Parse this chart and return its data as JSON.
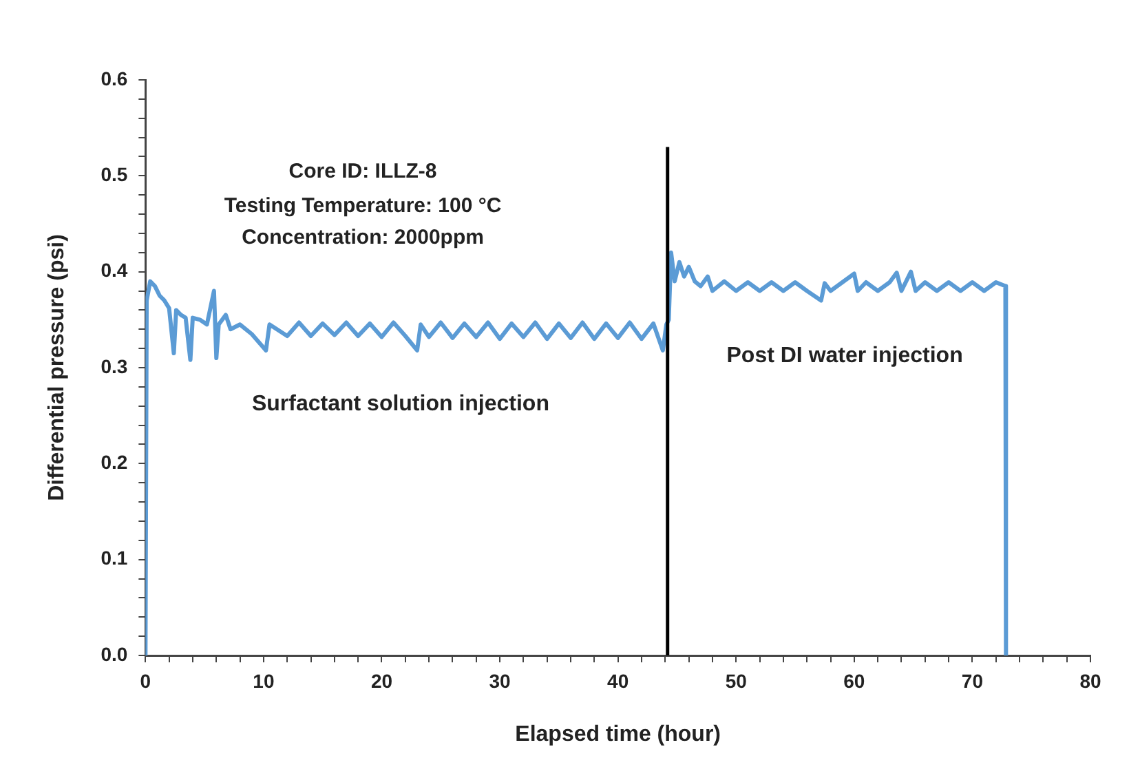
{
  "chart_data": {
    "type": "line",
    "xlabel": "Elapsed time (hour)",
    "ylabel": "Differential pressure (psi)",
    "xlim": [
      0,
      80
    ],
    "ylim": [
      0,
      0.6
    ],
    "xticks": [
      0,
      {
        "value": 2,
        "label": null
      },
      {
        "value": 4,
        "label": null
      },
      {
        "value": 6,
        "label": null
      },
      {
        "value": 8,
        "label": null
      },
      10,
      {
        "value": 12,
        "label": null
      },
      {
        "value": 14,
        "label": null
      },
      {
        "value": 16,
        "label": null
      },
      {
        "value": 18,
        "label": null
      },
      20,
      {
        "value": 22,
        "label": null
      },
      {
        "value": 24,
        "label": null
      },
      {
        "value": 26,
        "label": null
      },
      {
        "value": 28,
        "label": null
      },
      30,
      {
        "value": 32,
        "label": null
      },
      {
        "value": 34,
        "label": null
      },
      {
        "value": 36,
        "label": null
      },
      {
        "value": 38,
        "label": null
      },
      40,
      {
        "value": 42,
        "label": null
      },
      {
        "value": 44,
        "label": null
      },
      {
        "value": 46,
        "label": null
      },
      {
        "value": 48,
        "label": null
      },
      50,
      {
        "value": 52,
        "label": null
      },
      {
        "value": 54,
        "label": null
      },
      {
        "value": 56,
        "label": null
      },
      {
        "value": 58,
        "label": null
      },
      60,
      {
        "value": 62,
        "label": null
      },
      {
        "value": 64,
        "label": null
      },
      {
        "value": 66,
        "label": null
      },
      {
        "value": 68,
        "label": null
      },
      70,
      {
        "value": 72,
        "label": null
      },
      {
        "value": 74,
        "label": null
      },
      {
        "value": 76,
        "label": null
      },
      {
        "value": 78,
        "label": null
      },
      80
    ],
    "yticks": [
      {
        "value": 0,
        "label": "0.0"
      },
      {
        "value": 0.02,
        "label": null
      },
      {
        "value": 0.04,
        "label": null
      },
      {
        "value": 0.06,
        "label": null
      },
      {
        "value": 0.08,
        "label": null
      },
      {
        "value": 0.1,
        "label": "0.1"
      },
      {
        "value": 0.12,
        "label": null
      },
      {
        "value": 0.14,
        "label": null
      },
      {
        "value": 0.16,
        "label": null
      },
      {
        "value": 0.18,
        "label": null
      },
      {
        "value": 0.2,
        "label": "0.2"
      },
      {
        "value": 0.22,
        "label": null
      },
      {
        "value": 0.24,
        "label": null
      },
      {
        "value": 0.26,
        "label": null
      },
      {
        "value": 0.28,
        "label": null
      },
      {
        "value": 0.3,
        "label": "0.3"
      },
      {
        "value": 0.32,
        "label": null
      },
      {
        "value": 0.34,
        "label": null
      },
      {
        "value": 0.36,
        "label": null
      },
      {
        "value": 0.38,
        "label": null
      },
      {
        "value": 0.4,
        "label": "0.4"
      },
      {
        "value": 0.42,
        "label": null
      },
      {
        "value": 0.44,
        "label": null
      },
      {
        "value": 0.46,
        "label": null
      },
      {
        "value": 0.48,
        "label": null
      },
      {
        "value": 0.5,
        "label": "0.5"
      },
      {
        "value": 0.52,
        "label": null
      },
      {
        "value": 0.54,
        "label": null
      },
      {
        "value": 0.56,
        "label": null
      },
      {
        "value": 0.58,
        "label": null
      },
      {
        "value": 0.6,
        "label": "0.6"
      }
    ],
    "grid": false,
    "legend": false,
    "marker": "none",
    "line_style": "solid",
    "series": [
      {
        "color": "#5b9bd5",
        "x": [
          0,
          0.1,
          0.4,
          0.8,
          1.2,
          1.6,
          2.0,
          2.4,
          2.6,
          3.0,
          3.4,
          3.8,
          4.0,
          4.6,
          5.2,
          5.8,
          6.0,
          6.2,
          6.8,
          7.2,
          8,
          9,
          10.2,
          10.5,
          12,
          13,
          14,
          15,
          16,
          17,
          18,
          19,
          20,
          21,
          22,
          23,
          23.3,
          24,
          25,
          26,
          27,
          28,
          29,
          30,
          31,
          32,
          33,
          34,
          35,
          36,
          37,
          38,
          39,
          40,
          41,
          42,
          43,
          43.8,
          44.1,
          44.3,
          44.5,
          44.8,
          45.2,
          45.6,
          46,
          46.5,
          47,
          47.6,
          48,
          49,
          50,
          51,
          52,
          53,
          54,
          55,
          56,
          57.2,
          57.5,
          58,
          59,
          60,
          60.3,
          61,
          62,
          63,
          63.6,
          64,
          64.8,
          65.2,
          66,
          67,
          68,
          69,
          70,
          71,
          72,
          72.8,
          72.85
        ],
        "values": [
          0,
          0.37,
          0.39,
          0.385,
          0.375,
          0.37,
          0.362,
          0.315,
          0.36,
          0.355,
          0.352,
          0.308,
          0.352,
          0.35,
          0.345,
          0.38,
          0.31,
          0.345,
          0.355,
          0.34,
          0.345,
          0.335,
          0.318,
          0.345,
          0.333,
          0.347,
          0.333,
          0.346,
          0.334,
          0.347,
          0.333,
          0.346,
          0.332,
          0.347,
          0.333,
          0.318,
          0.345,
          0.332,
          0.347,
          0.331,
          0.346,
          0.332,
          0.347,
          0.33,
          0.346,
          0.332,
          0.347,
          0.33,
          0.346,
          0.331,
          0.347,
          0.33,
          0.346,
          0.331,
          0.347,
          0.33,
          0.346,
          0.318,
          0.345,
          0.35,
          0.42,
          0.39,
          0.41,
          0.395,
          0.405,
          0.39,
          0.385,
          0.395,
          0.38,
          0.39,
          0.38,
          0.389,
          0.38,
          0.389,
          0.38,
          0.389,
          0.38,
          0.37,
          0.388,
          0.38,
          0.389,
          0.398,
          0.38,
          0.389,
          0.38,
          0.389,
          0.399,
          0.38,
          0.4,
          0.38,
          0.389,
          0.38,
          0.389,
          0.38,
          0.389,
          0.38,
          0.389,
          0.385,
          0
        ]
      }
    ],
    "ref_lines": [
      {
        "axis": "x",
        "value": 44.2,
        "color": "#000000",
        "line_style": "solid"
      }
    ],
    "annotations": [
      "Core ID: ILLZ-8",
      "Testing Temperature: 100 °C",
      "Concentration: 2000ppm",
      "Surfactant solution injection",
      "Post DI water injection"
    ]
  }
}
